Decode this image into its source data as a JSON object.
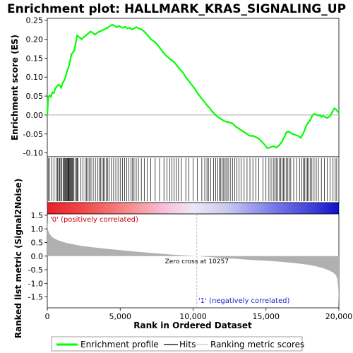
{
  "chart_data": {
    "type": "line",
    "title": "Enrichment plot: HALLMARK_KRAS_SIGNALING_UP",
    "es_panel": {
      "ylabel": "Enrichment score (ES)",
      "ylim": [
        -0.11,
        0.255
      ],
      "yticks": [
        -0.1,
        -0.05,
        0.0,
        0.05,
        0.1,
        0.15,
        0.2,
        0.25
      ],
      "series": [
        {
          "name": "Enrichment profile",
          "color": "#00ff00",
          "x": [
            0,
            60,
            150,
            250,
            350,
            450,
            550,
            650,
            750,
            850,
            950,
            1050,
            1150,
            1250,
            1350,
            1450,
            1550,
            1650,
            1750,
            1850,
            1950,
            2050,
            2200,
            2350,
            2500,
            2650,
            2800,
            2950,
            3100,
            3250,
            3400,
            3550,
            3700,
            3850,
            4000,
            4150,
            4300,
            4450,
            4600,
            4750,
            4900,
            5050,
            5200,
            5350,
            5500,
            5650,
            5800,
            5950,
            6100,
            6300,
            6500,
            6700,
            6900,
            7100,
            7300,
            7500,
            7700,
            7900,
            8100,
            8300,
            8500,
            8700,
            8900,
            9100,
            9300,
            9500,
            9700,
            9900,
            10100,
            10300,
            10500,
            10700,
            10900,
            11100,
            11300,
            11500,
            11700,
            11900,
            12100,
            12300,
            12500,
            12700,
            12900,
            13100,
            13300,
            13500,
            13700,
            13900,
            14100,
            14300,
            14500,
            14700,
            14900,
            15100,
            15300,
            15500,
            15700,
            15900,
            16000,
            16100,
            16200,
            16300,
            16400,
            16600,
            16800,
            17000,
            17200,
            17400,
            17500,
            17600,
            17700,
            17800,
            17900,
            18000,
            18100,
            18200,
            18300,
            18400,
            18500,
            18600,
            18700,
            18800,
            18900,
            19000,
            19100,
            19200,
            19300,
            19400,
            19500,
            19600,
            19700,
            19800,
            19900,
            20000
          ],
          "values": [
            0.0,
            0.045,
            0.052,
            0.048,
            0.06,
            0.058,
            0.07,
            0.075,
            0.08,
            0.078,
            0.072,
            0.085,
            0.09,
            0.1,
            0.115,
            0.125,
            0.14,
            0.16,
            0.165,
            0.17,
            0.19,
            0.21,
            0.205,
            0.2,
            0.205,
            0.21,
            0.215,
            0.22,
            0.218,
            0.212,
            0.216,
            0.22,
            0.222,
            0.225,
            0.228,
            0.23,
            0.235,
            0.238,
            0.236,
            0.232,
            0.235,
            0.232,
            0.23,
            0.233,
            0.228,
            0.23,
            0.226,
            0.228,
            0.232,
            0.228,
            0.225,
            0.218,
            0.21,
            0.2,
            0.195,
            0.188,
            0.178,
            0.168,
            0.158,
            0.152,
            0.145,
            0.14,
            0.13,
            0.12,
            0.112,
            0.1,
            0.09,
            0.08,
            0.07,
            0.058,
            0.048,
            0.038,
            0.028,
            0.02,
            0.01,
            0.002,
            -0.005,
            -0.01,
            -0.015,
            -0.018,
            -0.02,
            -0.022,
            -0.03,
            -0.035,
            -0.04,
            -0.045,
            -0.05,
            -0.055,
            -0.055,
            -0.058,
            -0.062,
            -0.07,
            -0.078,
            -0.088,
            -0.085,
            -0.082,
            -0.086,
            -0.08,
            -0.075,
            -0.07,
            -0.062,
            -0.055,
            -0.045,
            -0.044,
            -0.05,
            -0.052,
            -0.055,
            -0.06,
            -0.052,
            -0.045,
            -0.035,
            -0.025,
            -0.02,
            -0.015,
            -0.008,
            0.0,
            0.003,
            0.002,
            0.0,
            -0.002,
            0.0,
            -0.005,
            -0.002,
            -0.004,
            -0.006,
            -0.008,
            -0.005,
            -0.003,
            0.005,
            0.012,
            0.018,
            0.015,
            0.01,
            0.005
          ]
        }
      ]
    },
    "hits_panel": {
      "series_name": "Hits",
      "hit_positions": [
        60,
        150,
        300,
        450,
        600,
        700,
        780,
        850,
        920,
        1000,
        1080,
        1150,
        1200,
        1250,
        1300,
        1350,
        1400,
        1430,
        1470,
        1500,
        1550,
        1600,
        1650,
        1700,
        1750,
        1800,
        1900,
        2000,
        2050,
        2100,
        2300,
        2450,
        2600,
        2700,
        2800,
        2900,
        3000,
        3150,
        3300,
        3450,
        3550,
        3650,
        3750,
        3850,
        3950,
        4050,
        4150,
        4250,
        4400,
        4550,
        4700,
        4850,
        5000,
        5150,
        5300,
        5450,
        5600,
        5750,
        5850,
        5950,
        6100,
        6250,
        6450,
        6650,
        6850,
        7100,
        7400,
        7700,
        8000,
        8200,
        8400,
        8550,
        8700,
        8850,
        9000,
        9200,
        9500,
        9700,
        10000,
        10300,
        10600,
        10800,
        10950,
        11050,
        11200,
        11400,
        11550,
        11700,
        11800,
        11900,
        12000,
        12100,
        12200,
        12300,
        12400,
        12550,
        12700,
        12850,
        13000,
        13150,
        13300,
        13500,
        13700,
        13900,
        14100,
        14300,
        14500,
        14800,
        15000,
        15200,
        15350,
        15500,
        15600,
        15700,
        15800,
        15900,
        16000,
        16100,
        16200,
        16300,
        16400,
        16500,
        16600,
        16700,
        16900,
        17100,
        17300,
        17450,
        17550,
        17650,
        17750,
        17850,
        17950,
        18050,
        18150,
        18300,
        18450,
        18600,
        18800,
        19000,
        19200,
        19400,
        19600,
        19750,
        19850
      ]
    },
    "metric_panel": {
      "ylabel": "Ranked list metric (Signal2Noise)",
      "xlabel": "Rank in Ordered Dataset",
      "xlim": [
        0,
        20000
      ],
      "ylim": [
        -1.9,
        1.55
      ],
      "yticks": [
        -1.5,
        -1.0,
        -0.5,
        0.0,
        0.5,
        1.0,
        1.5
      ],
      "xticks": [
        0,
        5000,
        10000,
        15000,
        20000
      ],
      "zero_cross": 10257,
      "zero_cross_label": "Zero cross at 10257",
      "pos_label": "'0' (positively correlated)",
      "neg_label": "'1' (negatively correlated)",
      "series_name": "Ranking metric scores",
      "x": [
        0,
        50,
        150,
        300,
        500,
        800,
        1200,
        1700,
        2300,
        3000,
        4000,
        5000,
        6000,
        7000,
        8000,
        9000,
        10000,
        10257,
        11000,
        12000,
        13000,
        14000,
        15000,
        16000,
        17000,
        17800,
        18400,
        18900,
        19300,
        19600,
        19800,
        19900,
        19960,
        20000
      ],
      "values": [
        1.3,
        0.95,
        0.82,
        0.72,
        0.64,
        0.57,
        0.5,
        0.44,
        0.38,
        0.33,
        0.27,
        0.22,
        0.17,
        0.12,
        0.08,
        0.04,
        0.01,
        0.0,
        -0.03,
        -0.07,
        -0.1,
        -0.14,
        -0.17,
        -0.21,
        -0.26,
        -0.31,
        -0.37,
        -0.44,
        -0.52,
        -0.6,
        -0.7,
        -0.85,
        -1.2,
        -1.8
      ]
    },
    "legend": {
      "placement": "bottom",
      "entries": [
        "Enrichment profile",
        "Hits",
        "Ranking metric scores"
      ]
    },
    "colors": {
      "profile": "#00ff00",
      "hits": "#000000",
      "metric_fill": "#b0b0b0",
      "zero_line": "#aaaaaa",
      "pos_text": "#cc0000",
      "neg_text": "#2222cc"
    }
  }
}
